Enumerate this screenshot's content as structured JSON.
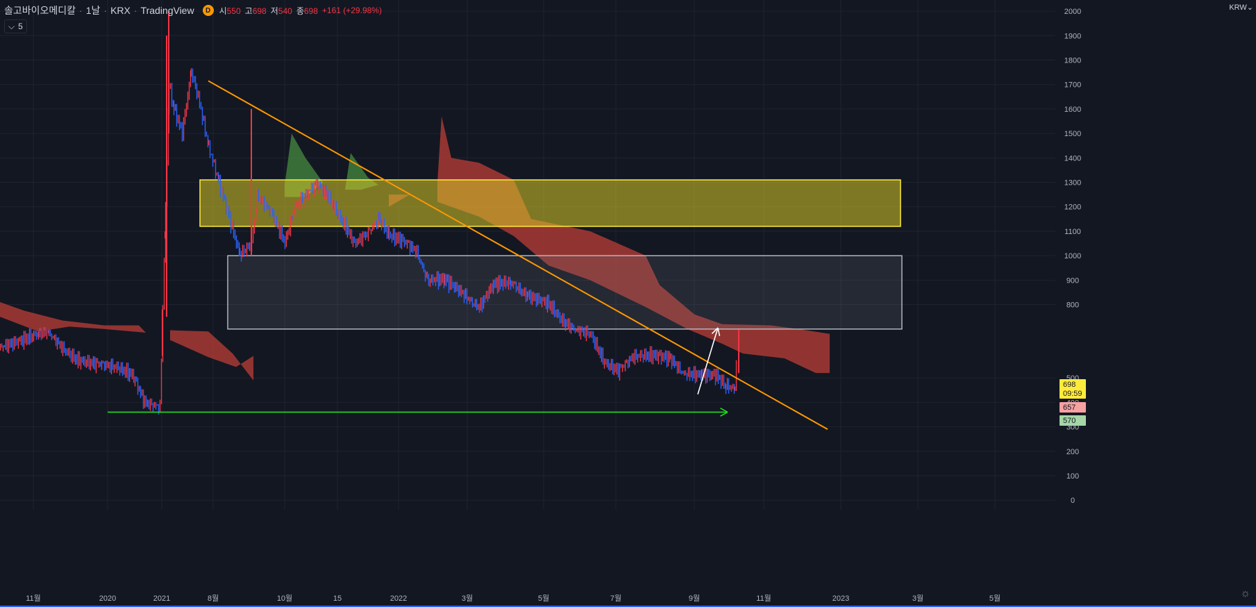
{
  "header": {
    "symbol": "솔고바이오메디칼",
    "interval": "1날",
    "exchange": "KRX",
    "source": "TradingView",
    "badge": "D",
    "open_label": "시",
    "open": "550",
    "high_label": "고",
    "high": "698",
    "low_label": "저",
    "low": "540",
    "close_label": "종",
    "close": "698",
    "change": "+161 (+29.98%)"
  },
  "indicator_toggle": {
    "label": "5"
  },
  "currency": "KRW",
  "colors": {
    "background": "#131722",
    "grid": "#1f2330",
    "up": "#f23645",
    "down": "#2962ff",
    "cloud_bear": "#a83a34",
    "cloud_bull": "#3f7d3c",
    "trendline": "#ff9800",
    "yellow_zone": "#8a8428",
    "gray_zone": "#2a2e39",
    "support_arrow": "#22dd22",
    "breakout_arrow": "#ffffff"
  },
  "chart_data": {
    "type": "candlestick",
    "yaxis": {
      "ticks": [
        0,
        100,
        200,
        300,
        400,
        500,
        800,
        900,
        1000,
        1100,
        1200,
        1300,
        1400,
        1500,
        1600,
        1700,
        1800,
        1900,
        2000
      ],
      "ylim": [
        -15,
        2015
      ]
    },
    "xaxis": {
      "ticks": [
        "11월",
        "2020",
        "2021",
        "8월",
        "10월",
        "15",
        "2022",
        "3월",
        "5월",
        "7월",
        "9월",
        "11월",
        "2023",
        "3월",
        "5월"
      ]
    },
    "price_labels": [
      {
        "value": 698,
        "text": "698",
        "sub": "09:59",
        "color": "#ffeb3b",
        "text_color": "#131722"
      },
      {
        "value": 657,
        "text": "657",
        "color": "#f7a1a1",
        "text_color": "#131722"
      },
      {
        "value": 570,
        "text": "570",
        "color": "#a5d6a7",
        "text_color": "#131722"
      }
    ],
    "series": [
      {
        "name": "price",
        "points": [
          [
            0,
            630
          ],
          [
            30,
            650
          ],
          [
            55,
            680
          ],
          [
            70,
            690
          ],
          [
            90,
            620
          ],
          [
            110,
            570
          ],
          [
            130,
            560
          ],
          [
            150,
            560
          ],
          [
            170,
            540
          ],
          [
            190,
            510
          ],
          [
            208,
            400
          ],
          [
            230,
            385
          ],
          [
            243,
            1700
          ],
          [
            250,
            1600
          ],
          [
            262,
            1500
          ],
          [
            275,
            1750
          ],
          [
            285,
            1650
          ],
          [
            300,
            1450
          ],
          [
            315,
            1300
          ],
          [
            330,
            1150
          ],
          [
            345,
            1000
          ],
          [
            362,
            1050
          ],
          [
            370,
            1250
          ],
          [
            390,
            1180
          ],
          [
            410,
            1050
          ],
          [
            425,
            1200
          ],
          [
            440,
            1250
          ],
          [
            455,
            1300
          ],
          [
            470,
            1250
          ],
          [
            490,
            1150
          ],
          [
            510,
            1050
          ],
          [
            530,
            1100
          ],
          [
            545,
            1150
          ],
          [
            560,
            1080
          ],
          [
            580,
            1060
          ],
          [
            600,
            1020
          ],
          [
            615,
            900
          ],
          [
            640,
            900
          ],
          [
            660,
            860
          ],
          [
            690,
            790
          ],
          [
            710,
            880
          ],
          [
            735,
            890
          ],
          [
            760,
            840
          ],
          [
            790,
            800
          ],
          [
            810,
            730
          ],
          [
            830,
            700
          ],
          [
            850,
            680
          ],
          [
            870,
            560
          ],
          [
            890,
            530
          ],
          [
            910,
            590
          ],
          [
            940,
            590
          ],
          [
            965,
            580
          ],
          [
            985,
            520
          ],
          [
            1010,
            510
          ],
          [
            1030,
            510
          ],
          [
            1045,
            470
          ],
          [
            1058,
            460
          ],
          [
            1062,
            698
          ]
        ]
      }
    ],
    "clouds": [
      {
        "polygon": [
          [
            0,
            810
          ],
          [
            35,
            775
          ],
          [
            90,
            735
          ],
          [
            150,
            715
          ],
          [
            200,
            715
          ],
          [
            210,
            685
          ],
          [
            150,
            700
          ],
          [
            100,
            710
          ],
          [
            55,
            690
          ],
          [
            0,
            750
          ]
        ],
        "color": "cloud_bear"
      },
      {
        "polygon": [
          [
            245,
            695
          ],
          [
            300,
            690
          ],
          [
            335,
            600
          ],
          [
            365,
            490
          ],
          [
            365,
            590
          ],
          [
            340,
            545
          ],
          [
            300,
            585
          ],
          [
            245,
            655
          ]
        ],
        "color": "cloud_bear"
      },
      {
        "polygon": [
          [
            410,
            1290
          ],
          [
            420,
            1500
          ],
          [
            440,
            1400
          ],
          [
            465,
            1300
          ],
          [
            440,
            1240
          ],
          [
            410,
            1240
          ]
        ],
        "color": "cloud_bull"
      },
      {
        "polygon": [
          [
            497,
            1270
          ],
          [
            505,
            1420
          ],
          [
            530,
            1320
          ],
          [
            545,
            1290
          ],
          [
            520,
            1270
          ]
        ],
        "color": "cloud_bull"
      },
      {
        "polygon": [
          [
            560,
            1250
          ],
          [
            590,
            1250
          ],
          [
            560,
            1200
          ]
        ],
        "color": "cloud_bear"
      },
      {
        "polygon": [
          [
            630,
            1300
          ],
          [
            636,
            1570
          ],
          [
            650,
            1400
          ],
          [
            690,
            1380
          ],
          [
            740,
            1310
          ],
          [
            765,
            1150
          ],
          [
            850,
            1100
          ],
          [
            930,
            1000
          ],
          [
            950,
            880
          ],
          [
            1000,
            760
          ],
          [
            1040,
            720
          ],
          [
            1110,
            715
          ],
          [
            1150,
            700
          ],
          [
            1195,
            680
          ],
          [
            1195,
            520
          ],
          [
            1175,
            520
          ],
          [
            1130,
            580
          ],
          [
            1070,
            600
          ],
          [
            1040,
            640
          ],
          [
            990,
            700
          ],
          [
            930,
            790
          ],
          [
            850,
            900
          ],
          [
            790,
            960
          ],
          [
            740,
            1080
          ],
          [
            690,
            1160
          ],
          [
            650,
            1200
          ],
          [
            630,
            1220
          ]
        ],
        "color": "cloud_bear"
      }
    ],
    "annotations": [
      {
        "type": "rect",
        "x1": 288,
        "x2": 1297,
        "y1": 1120,
        "y2": 1310,
        "color": "yellow_zone"
      },
      {
        "type": "rect",
        "x1": 328,
        "x2": 1299,
        "y1": 700,
        "y2": 1000,
        "color": "gray_zone"
      },
      {
        "type": "line",
        "x1": 300,
        "y1": 1715,
        "x2": 1192,
        "y2": 290,
        "color": "trendline"
      },
      {
        "type": "arrow",
        "x1": 155,
        "y1": 360,
        "x2": 1048,
        "y2": 360,
        "color": "support_arrow"
      },
      {
        "type": "arrow",
        "x1": 1005,
        "y1": 433,
        "x2": 1034,
        "y2": 705,
        "color": "breakout_arrow"
      }
    ]
  }
}
